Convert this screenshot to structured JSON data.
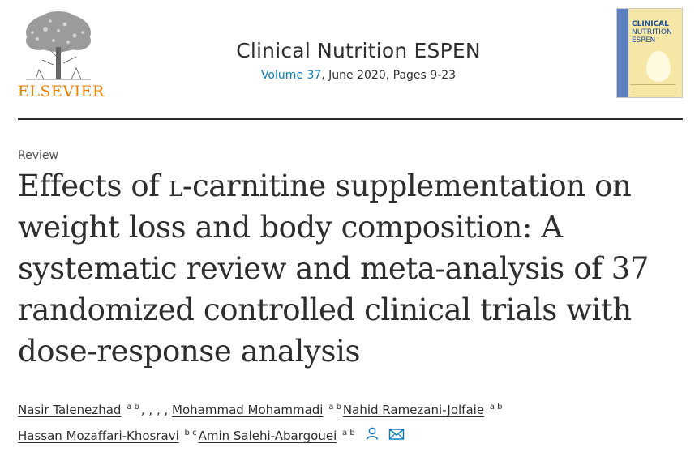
{
  "publisher": {
    "logo_word": "ELSEVIER",
    "logo_icon": "elsevier-tree-icon"
  },
  "journal": {
    "title": "Clinical Nutrition ESPEN",
    "volume_link": "Volume 37",
    "issue_info": ", June 2020, Pages 9-23",
    "cover": {
      "line1": "Clinical",
      "line2": "Nutrition",
      "line3": "ESPEN"
    }
  },
  "article": {
    "type": "Review",
    "title_part1": "Effects of ",
    "title_smallcap": "l",
    "title_part2": "-carnitine supplementation on weight loss and body composition: A systematic review and meta-analysis of 37 randomized controlled clinical trials with dose-response analysis"
  },
  "authors": [
    {
      "name": "Nasir Talenezhad",
      "aff": "a b",
      "after": ", , , , "
    },
    {
      "name": "Mohammad Mohammadi",
      "aff": "a b",
      "after": ""
    },
    {
      "name": "Nahid Ramezani-Jolfaie",
      "aff": "a b",
      "after": ""
    },
    {
      "name": "Hassan Mozaffari-Khosravi",
      "aff": "b c",
      "after": ""
    },
    {
      "name": "Amin Salehi-Abargouei",
      "aff": "a b",
      "after": ""
    }
  ],
  "colors": {
    "link_blue": "#0c7dbb",
    "elsevier_orange": "#f07d00",
    "text": "#2e2e2e"
  },
  "icons": {
    "person": "person-icon",
    "mail": "envelope-icon"
  }
}
